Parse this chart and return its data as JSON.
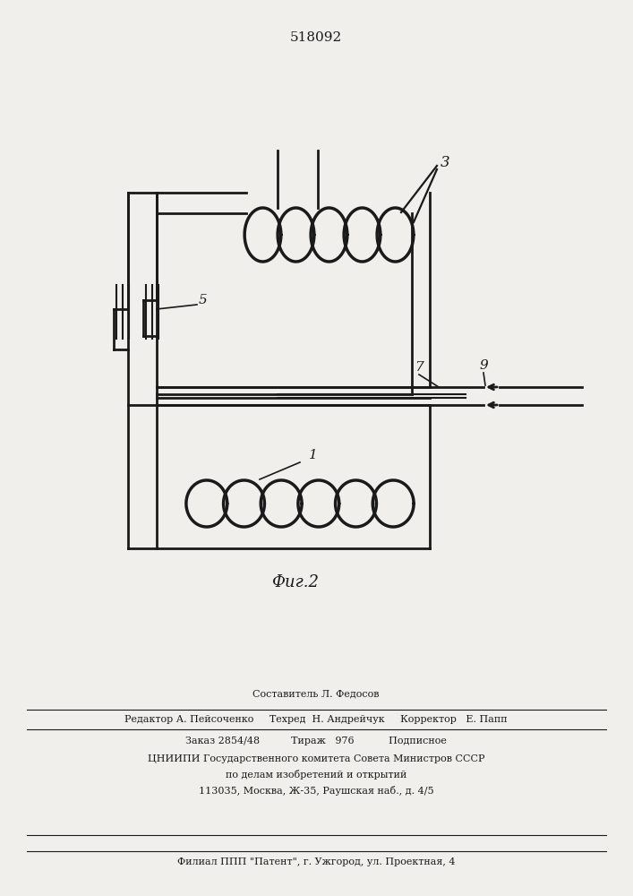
{
  "title": "518092",
  "caption": "Фиг.2",
  "bg_color": "#f0efeb",
  "line_color": "#1a1a1a",
  "footer_lines": [
    "Составитель Л. Федосов",
    "Редактор А. Пейсоченко     Техред  Н. Андрейчук     Корректор   Е. Папп",
    "Заказ 2854/48          Тираж   976           Подписное",
    "ЦНИИПИ Государственного комитета Совета Министров СССР",
    "по делам изобретений и открытий",
    "113035, Москва, Ж-35, Раушская наб., д. 4/5",
    "Филиал ППП \"Патент\", г. Ужгород, ул. Проектная, 4"
  ]
}
